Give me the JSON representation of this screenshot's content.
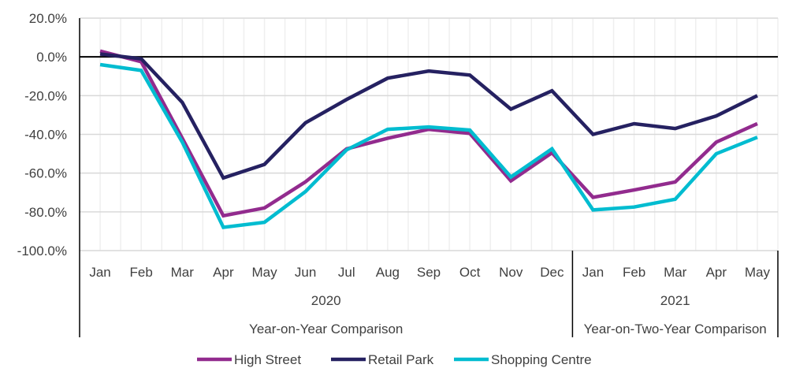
{
  "chart_data": {
    "type": "line",
    "categories": [
      "Jan",
      "Feb",
      "Mar",
      "Apr",
      "May",
      "Jun",
      "Jul",
      "Aug",
      "Sep",
      "Oct",
      "Nov",
      "Dec",
      "Jan",
      "Feb",
      "Mar",
      "Apr",
      "May"
    ],
    "groups": [
      {
        "year": "2020",
        "label": "Year-on-Year Comparison",
        "count": 12
      },
      {
        "year": "2021",
        "label": "Year-on-Two-Year Comparison",
        "count": 5
      }
    ],
    "yticks": [
      "20.0%",
      "0.0%",
      "-20.0%",
      "-40.0%",
      "-60.0%",
      "-80.0%",
      "-100.0%"
    ],
    "ylim": [
      -100,
      20
    ],
    "grid": true,
    "legend_position": "bottom",
    "series": [
      {
        "name": "High Street",
        "color": "#922B8E",
        "values": [
          3,
          -2.5,
          -42,
          -82,
          -78,
          -64.5,
          -47.5,
          -42,
          -37.4,
          -39.5,
          -64,
          -49.5,
          -72.5,
          -68.7,
          -64.6,
          -44,
          -34.5
        ]
      },
      {
        "name": "Retail Park",
        "color": "#252161",
        "values": [
          1.5,
          -1,
          -23.5,
          -62.5,
          -55.5,
          -34,
          -22,
          -11,
          -7.3,
          -9.4,
          -27,
          -17.5,
          -40,
          -34.5,
          -37,
          -30.5,
          -20
        ]
      },
      {
        "name": "Shopping Centre",
        "color": "#00BCD0",
        "values": [
          -4,
          -7,
          -44,
          -88,
          -85.4,
          -69.5,
          -48,
          -37.4,
          -36.2,
          -37.8,
          -62,
          -47.5,
          -79,
          -77.5,
          -73.5,
          -50,
          -41.5
        ]
      }
    ]
  }
}
